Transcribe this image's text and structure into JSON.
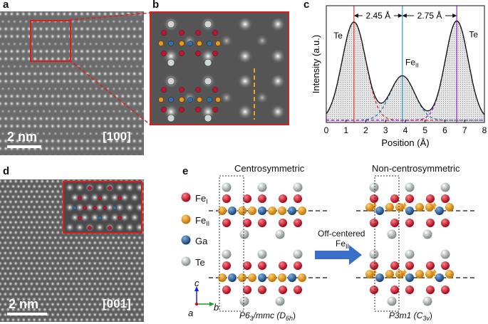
{
  "panels": {
    "a": {
      "label": "a",
      "scale_text": "2 nm",
      "zone_axis": "[100]"
    },
    "b": {
      "label": "b"
    },
    "c": {
      "label": "c"
    },
    "d": {
      "label": "d",
      "scale_text": "2 nm",
      "zone_axis": "[001]"
    },
    "e": {
      "label": "e"
    }
  },
  "chart_data": {
    "type": "line",
    "xlabel": "Position (Å)",
    "ylabel": "Intensity (a.u.)",
    "xlim": [
      0,
      8
    ],
    "xticks": [
      "0",
      "1",
      "2",
      "3",
      "4",
      "5",
      "6",
      "7",
      "8"
    ],
    "grid": false,
    "peaks": [
      {
        "name": "Te",
        "center": 1.4,
        "height": 0.84,
        "width": 0.6,
        "color": "#e03030"
      },
      {
        "name": "FeII",
        "center": 3.85,
        "height": 0.38,
        "width": 0.62,
        "color": "#2a7fc4"
      },
      {
        "name": "Te",
        "center": 6.6,
        "height": 0.85,
        "width": 0.58,
        "color": "#a020d0"
      }
    ],
    "baseline": 0.02,
    "vlines": [
      {
        "x": 1.4,
        "color": "#e03030"
      },
      {
        "x": 3.85,
        "color": "#2a9fd0"
      },
      {
        "x": 6.6,
        "color": "#a020d0"
      }
    ],
    "annotations": {
      "dist1": "2.45 Å",
      "dist2": "2.75 Å",
      "peak1": "Te",
      "peak2": "Fe",
      "peak2_sub": "II",
      "peak3": "Te"
    }
  },
  "structure": {
    "left_title": "Centrosymmetric",
    "right_title": "Non-centrosymmetric",
    "legend": [
      {
        "label": "Fe",
        "sub": "I",
        "color": "#c8102e"
      },
      {
        "label": "Fe",
        "sub": "II",
        "color": "#e89a10"
      },
      {
        "label": "Ga",
        "sub": "",
        "color": "#1f5f9e"
      },
      {
        "label": "Te",
        "sub": "",
        "color": "#9aa6a6"
      }
    ],
    "arrow_text": "Off-centered",
    "arrow_text2": "Fe",
    "arrow_text2_sub": "II",
    "axes": {
      "c": "c",
      "a": "a",
      "b": "b"
    },
    "left_group": {
      "pre": "P6",
      "sub1": "3",
      "mid": "/mmc (D",
      "sub2": "6h",
      "post": ")"
    },
    "right_group": {
      "pre": "P3m1 (C",
      "sub": "3v",
      "post": ")"
    }
  }
}
